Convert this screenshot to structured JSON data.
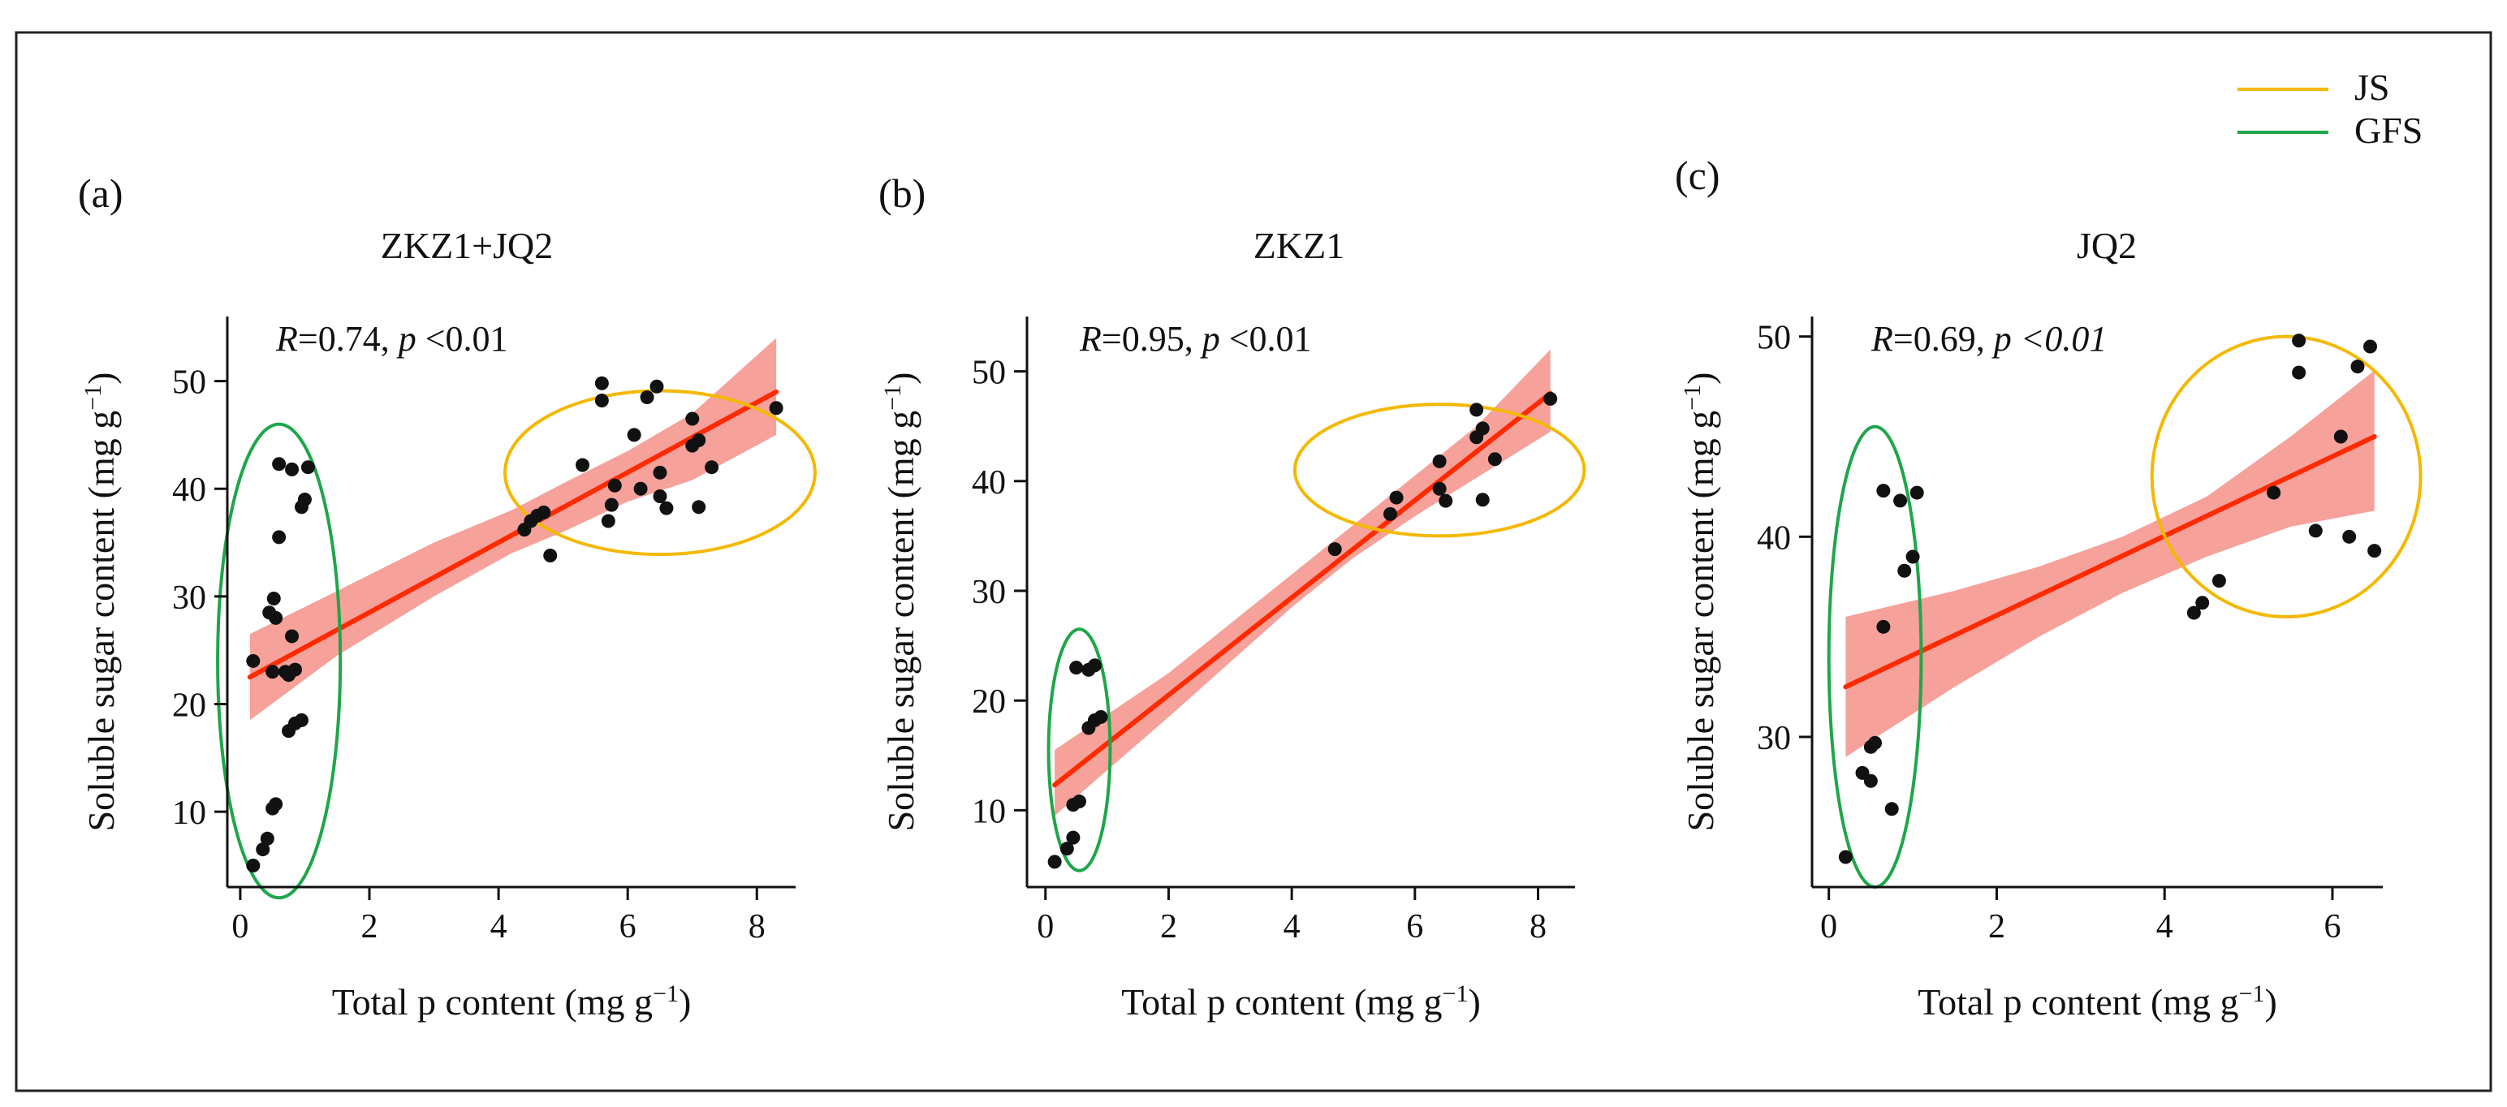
{
  "legend": [
    {
      "label": "JS",
      "color": "#f5b800"
    },
    {
      "label": "GFS",
      "color": "#1fa64a"
    }
  ],
  "colors": {
    "fit_line": "#ff2a00",
    "ci_band": "#f4877d",
    "points": "#111111"
  },
  "chart_data": [
    {
      "type": "scatter",
      "panel": "(a)",
      "title": "ZKZ1+JQ2",
      "annotation": {
        "r": "R",
        "r_value": "=0.74, ",
        "p": "p",
        "p_value": " <0.01"
      },
      "xlabel": "Total p content (mg g",
      "ylabel": "Soluble sugar content (mg g",
      "unit_exponent": "−1",
      "unit_close": ")",
      "xlim": [
        -0.2,
        8.6
      ],
      "ylim": [
        3,
        56
      ],
      "xticks": [
        0,
        2,
        4,
        6,
        8
      ],
      "yticks": [
        10,
        20,
        30,
        40,
        50
      ],
      "fit": {
        "x": [
          0.15,
          8.3
        ],
        "y": [
          22.5,
          49
        ]
      },
      "ci": {
        "x": [
          0.15,
          1.5,
          3,
          4.2,
          5,
          6,
          7,
          8.3
        ],
        "upper": [
          26.5,
          30.5,
          35,
          38,
          40.5,
          43.5,
          47,
          54
        ],
        "lower": [
          18.5,
          24.5,
          30,
          34,
          36,
          38.8,
          40.8,
          45
        ]
      },
      "points": [
        [
          0.2,
          5
        ],
        [
          0.35,
          6.5
        ],
        [
          0.42,
          7.5
        ],
        [
          0.5,
          10.3
        ],
        [
          0.55,
          10.7
        ],
        [
          0.2,
          24
        ],
        [
          0.5,
          23
        ],
        [
          0.7,
          23
        ],
        [
          0.75,
          22.7
        ],
        [
          0.85,
          23.2
        ],
        [
          0.8,
          26.3
        ],
        [
          0.45,
          28.5
        ],
        [
          0.55,
          28
        ],
        [
          0.52,
          29.8
        ],
        [
          0.75,
          17.5
        ],
        [
          0.85,
          18.2
        ],
        [
          0.95,
          18.5
        ],
        [
          0.6,
          35.5
        ],
        [
          0.6,
          42.3
        ],
        [
          0.8,
          41.8
        ],
        [
          1.05,
          42
        ],
        [
          0.95,
          38.3
        ],
        [
          1.0,
          39
        ],
        [
          4.4,
          36.2
        ],
        [
          4.5,
          37
        ],
        [
          4.6,
          37.5
        ],
        [
          4.7,
          37.8
        ],
        [
          4.8,
          33.8
        ],
        [
          5.3,
          42.2
        ],
        [
          5.6,
          49.8
        ],
        [
          5.6,
          48.2
        ],
        [
          5.7,
          37
        ],
        [
          5.75,
          38.5
        ],
        [
          5.8,
          40.3
        ],
        [
          6.1,
          45
        ],
        [
          6.2,
          40
        ],
        [
          6.3,
          48.5
        ],
        [
          6.45,
          49.5
        ],
        [
          6.5,
          39.3
        ],
        [
          6.5,
          41.5
        ],
        [
          6.6,
          38.2
        ],
        [
          7.0,
          44
        ],
        [
          7.0,
          46.5
        ],
        [
          7.1,
          44.5
        ],
        [
          7.1,
          38.3
        ],
        [
          7.3,
          42
        ],
        [
          8.3,
          47.5
        ]
      ],
      "ellipses": [
        {
          "group": "GFS",
          "cx": 0.6,
          "cy": 24,
          "rx": 0.95,
          "ry": 22
        },
        {
          "group": "JS",
          "cx": 6.5,
          "cy": 41.5,
          "rx": 2.4,
          "ry": 7.6
        }
      ]
    },
    {
      "type": "scatter",
      "panel": "(b)",
      "title": "ZKZ1",
      "annotation": {
        "r": "R",
        "r_value": "=0.95, ",
        "p": "p",
        "p_value": " <0.01"
      },
      "xlabel": "Total p content (mg g",
      "ylabel": "Soluble sugar content (mg g",
      "unit_exponent": "−1",
      "unit_close": ")",
      "xlim": [
        -0.3,
        8.6
      ],
      "ylim": [
        3,
        55
      ],
      "xticks": [
        0,
        2,
        4,
        6,
        8
      ],
      "yticks": [
        10,
        20,
        30,
        40,
        50
      ],
      "fit": {
        "x": [
          0.15,
          8.2
        ],
        "y": [
          12.3,
          48
        ]
      },
      "ci": {
        "x": [
          0.15,
          2,
          4,
          5,
          6,
          7,
          8.2
        ],
        "upper": [
          15.5,
          22.5,
          31.5,
          36,
          40.5,
          45,
          52
        ],
        "lower": [
          9.5,
          18.5,
          28.5,
          33,
          36.8,
          40.3,
          44.5
        ]
      },
      "points": [
        [
          0.15,
          5.3
        ],
        [
          0.35,
          6.5
        ],
        [
          0.45,
          7.5
        ],
        [
          0.45,
          10.5
        ],
        [
          0.55,
          10.8
        ],
        [
          0.5,
          23
        ],
        [
          0.7,
          22.8
        ],
        [
          0.8,
          23.2
        ],
        [
          0.7,
          17.5
        ],
        [
          0.8,
          18.2
        ],
        [
          0.9,
          18.5
        ],
        [
          4.7,
          33.8
        ],
        [
          5.6,
          37
        ],
        [
          5.7,
          38.5
        ],
        [
          6.4,
          41.8
        ],
        [
          6.4,
          39.3
        ],
        [
          6.5,
          38.2
        ],
        [
          7.0,
          46.5
        ],
        [
          7.0,
          44
        ],
        [
          7.1,
          44.8
        ],
        [
          7.1,
          38.3
        ],
        [
          7.3,
          42
        ],
        [
          8.2,
          47.5
        ]
      ],
      "ellipses": [
        {
          "group": "GFS",
          "cx": 0.55,
          "cy": 15.5,
          "rx": 0.5,
          "ry": 11
        },
        {
          "group": "JS",
          "cx": 6.4,
          "cy": 41,
          "rx": 2.35,
          "ry": 6
        }
      ]
    },
    {
      "type": "scatter",
      "panel": "(c)",
      "title": "JQ2",
      "annotation": {
        "r": "R",
        "r_value": "=0.69, ",
        "p": "p",
        "p_value": " <0.01"
      },
      "xlabel": "Total p content (mg g",
      "ylabel": "Soluble sugar content (mg g",
      "unit_exponent": "−1",
      "unit_close": ")",
      "xlim": [
        -0.2,
        6.6
      ],
      "ylim": [
        22.5,
        51
      ],
      "xticks": [
        0,
        2,
        4,
        6
      ],
      "yticks": [
        30,
        40,
        50
      ],
      "fit": {
        "x": [
          0.2,
          6.5
        ],
        "y": [
          32.5,
          45
        ]
      },
      "ci": {
        "x": [
          0.2,
          1.5,
          2.5,
          3.5,
          4.5,
          5.5,
          6.5
        ],
        "upper": [
          36,
          37.3,
          38.5,
          40,
          42,
          45,
          48.3
        ],
        "lower": [
          29,
          32.5,
          35,
          37.2,
          39,
          40.5,
          41.3
        ]
      },
      "points": [
        [
          0.2,
          24
        ],
        [
          0.4,
          28.2
        ],
        [
          0.5,
          27.8
        ],
        [
          0.5,
          29.5
        ],
        [
          0.55,
          29.7
        ],
        [
          0.65,
          35.5
        ],
        [
          0.75,
          26.4
        ],
        [
          0.65,
          42.3
        ],
        [
          0.85,
          41.8
        ],
        [
          0.9,
          38.3
        ],
        [
          1.0,
          39
        ],
        [
          1.05,
          42.2
        ],
        [
          4.35,
          36.2
        ],
        [
          4.45,
          36.7
        ],
        [
          4.65,
          37.8
        ],
        [
          5.3,
          42.2
        ],
        [
          5.6,
          49.8
        ],
        [
          5.6,
          48.2
        ],
        [
          5.8,
          40.3
        ],
        [
          6.1,
          45
        ],
        [
          6.2,
          40
        ],
        [
          6.3,
          48.5
        ],
        [
          6.45,
          49.5
        ],
        [
          6.5,
          39.3
        ]
      ],
      "ellipses": [
        {
          "group": "GFS",
          "cx": 0.55,
          "cy": 34,
          "rx": 0.55,
          "ry": 11.5
        },
        {
          "group": "JS",
          "cx": 5.45,
          "cy": 43,
          "rx": 1.6,
          "ry": 7
        }
      ]
    }
  ]
}
